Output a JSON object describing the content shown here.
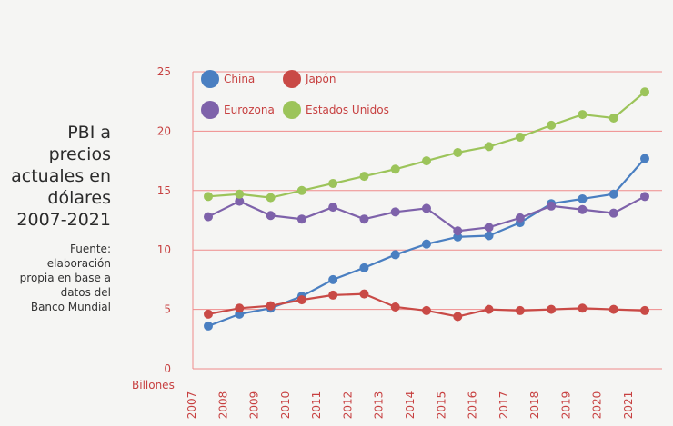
{
  "title_lines": [
    "PBI a precios",
    "actuales en",
    "dólares",
    "2007-2021"
  ],
  "source_lines": [
    "Fuente:",
    "elaboración",
    "propia en base a",
    "datos del",
    "Banco Mundial"
  ],
  "chart_data": {
    "type": "line",
    "title": "PBI a precios actuales en dólares 2007-2021",
    "ylabel": "Billones",
    "xlabel": "",
    "x": [
      "2007",
      "2008",
      "2009",
      "2010",
      "2011",
      "2012",
      "2013",
      "2014",
      "2015",
      "2016",
      "2017",
      "2018",
      "2019",
      "2020",
      "2021"
    ],
    "ylim": [
      0,
      25
    ],
    "yticks": [
      0,
      5,
      10,
      15,
      20,
      25
    ],
    "grid": "horizontal",
    "legend_position": "top-left",
    "series": [
      {
        "name": "China",
        "color": "#4a7fc1",
        "values": [
          3.6,
          4.6,
          5.1,
          6.1,
          7.5,
          8.5,
          9.6,
          10.5,
          11.1,
          11.2,
          12.3,
          13.9,
          14.3,
          14.7,
          17.7
        ]
      },
      {
        "name": "Japón",
        "color": "#c94a46",
        "values": [
          4.6,
          5.1,
          5.3,
          5.8,
          6.2,
          6.3,
          5.2,
          4.9,
          4.4,
          5.0,
          4.9,
          5.0,
          5.1,
          5.0,
          4.9
        ]
      },
      {
        "name": "Eurozona",
        "color": "#7e62aa",
        "values": [
          12.8,
          14.1,
          12.9,
          12.6,
          13.6,
          12.6,
          13.2,
          13.5,
          11.6,
          11.9,
          12.7,
          13.7,
          13.4,
          13.1,
          14.5
        ]
      },
      {
        "name": "Estados Unidos",
        "color": "#9cc45a",
        "values": [
          14.5,
          14.7,
          14.4,
          15.0,
          15.6,
          16.2,
          16.8,
          17.5,
          18.2,
          18.7,
          19.5,
          20.5,
          21.4,
          21.1,
          23.3
        ]
      }
    ]
  }
}
